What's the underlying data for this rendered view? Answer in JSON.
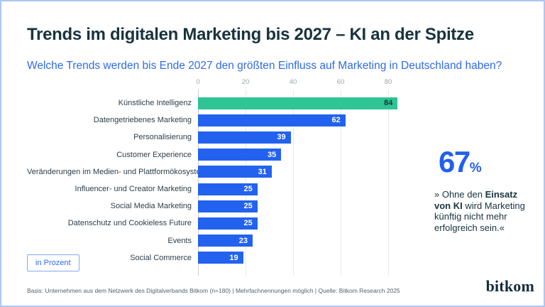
{
  "header": {
    "title": "Trends im digitalen Marketing bis 2027 – KI an der Spitze",
    "subtitle": "Welche Trends werden bis Ende 2027 den größten Einfluss auf Marketing in Deutschland haben?"
  },
  "chart_data": {
    "type": "bar",
    "orientation": "horizontal",
    "title": "Trends im digitalen Marketing bis 2027 – KI an der Spitze",
    "unit": "Prozent",
    "categories": [
      "Künstliche Intelligenz",
      "Datengetriebenes Marketing",
      "Personalisierung",
      "Customer Experience",
      "Veränderungen im Medien- und Plattformökosystem",
      "Influencer- und Creator Marketing",
      "Social Media Marketing",
      "Datenschutz und Cookieless Future",
      "Events",
      "Social Commerce"
    ],
    "values": [
      84,
      62,
      39,
      35,
      31,
      25,
      25,
      25,
      23,
      19
    ],
    "x_ticks": [
      0,
      20,
      40,
      60,
      80
    ],
    "xlim": [
      0,
      100
    ],
    "grid": true,
    "value_labels": "inside-end",
    "highlight_index": 0,
    "highlight_color": "#2ec493",
    "highlight_label_color": "#15333d",
    "bar_color": "#2262ef",
    "bar_label_color": "#ffffff"
  },
  "callout": {
    "stat_value": "67",
    "stat_unit": "%",
    "quote_lines": [
      [
        {
          "t": "» Ohne den ",
          "b": false
        },
        {
          "t": "Einsatz",
          "b": true
        }
      ],
      [
        {
          "t": "von KI",
          "b": true
        },
        {
          "t": " wird Marketing",
          "b": false
        }
      ],
      [
        {
          "t": "künftig nicht mehr",
          "b": false
        }
      ],
      [
        {
          "t": "erfolgreich sein.«",
          "b": false
        }
      ]
    ]
  },
  "legend": {
    "unit_label": "in Prozent"
  },
  "footer": {
    "source": "Basis: Unternehmen aus dem Netzwerk des Digitalverbands Bitkom (n=180) | Mehrfachnennungen möglich | Quelle: Bitkom Research 2025",
    "logo_text": "bitkom"
  },
  "colors": {
    "title": "#17333e",
    "subtitle": "#2f6bea",
    "stat_blue": "#2160ee",
    "axis_gray": "#9aa6ad",
    "gridline": "#e8eaec",
    "frame_border": "#abc7f3",
    "footer_gray": "#52616b",
    "logo_navy": "#142b3c"
  }
}
